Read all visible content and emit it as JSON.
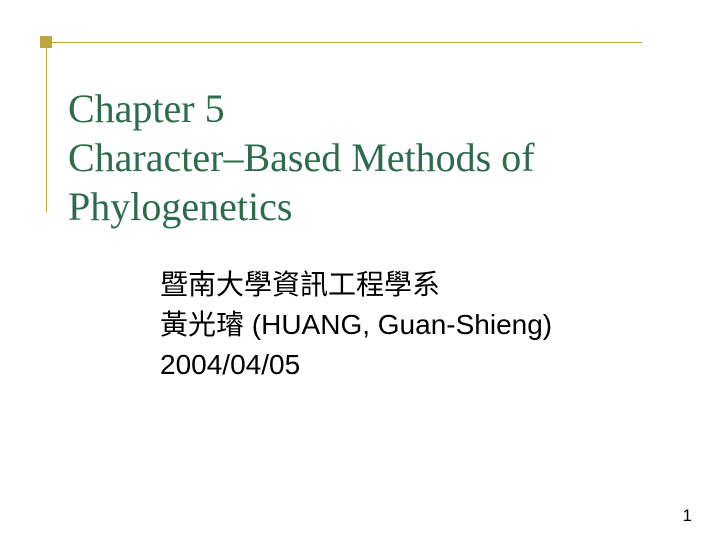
{
  "slide": {
    "title": {
      "line1": "Chapter 5",
      "line2": "Character–Based Methods of",
      "line3": "Phylogenetics",
      "color": "#2c6b4b",
      "fontsize": 40
    },
    "subtitle": {
      "line1": "暨南大學資訊工程學系",
      "line2": "黃光璿 (HUANG, Guan-Shieng)",
      "line3": "2004/04/05",
      "color": "#000000",
      "fontsize": 28
    },
    "border": {
      "color": "#bfa53f",
      "corner_square_size": 12
    },
    "page_number": "1",
    "background_color": "#ffffff"
  }
}
